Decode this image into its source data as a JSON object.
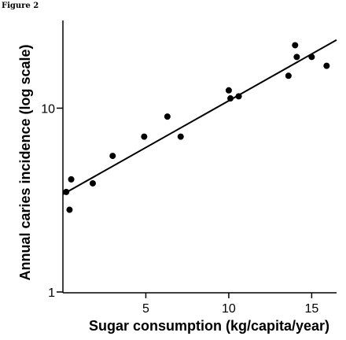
{
  "figure_label": "Figure 2",
  "chart_data": {
    "type": "scatter",
    "title": "",
    "xlabel": "Sugar consumption (kg/capita/year)",
    "ylabel": "Annual caries incidence (log scale)",
    "xlim": [
      0,
      16.5
    ],
    "ylim": [
      1,
      30
    ],
    "y_scale": "log",
    "x_ticks": [
      5,
      10,
      15
    ],
    "y_ticks": [
      1,
      10
    ],
    "grid": false,
    "points": [
      {
        "x": 0.2,
        "y": 3.5
      },
      {
        "x": 0.4,
        "y": 2.8
      },
      {
        "x": 0.5,
        "y": 4.1
      },
      {
        "x": 1.8,
        "y": 3.9
      },
      {
        "x": 3.0,
        "y": 5.5
      },
      {
        "x": 4.9,
        "y": 7.0
      },
      {
        "x": 6.3,
        "y": 9.0
      },
      {
        "x": 7.1,
        "y": 7.0
      },
      {
        "x": 10.0,
        "y": 12.5
      },
      {
        "x": 10.1,
        "y": 11.3
      },
      {
        "x": 10.6,
        "y": 11.6
      },
      {
        "x": 13.6,
        "y": 15.0
      },
      {
        "x": 14.0,
        "y": 22.0
      },
      {
        "x": 14.1,
        "y": 19.0
      },
      {
        "x": 15.0,
        "y": 19.0
      },
      {
        "x": 15.9,
        "y": 17.0
      }
    ],
    "trendline": {
      "x": [
        0,
        16.5
      ],
      "y": [
        3.4,
        23.5
      ]
    }
  }
}
